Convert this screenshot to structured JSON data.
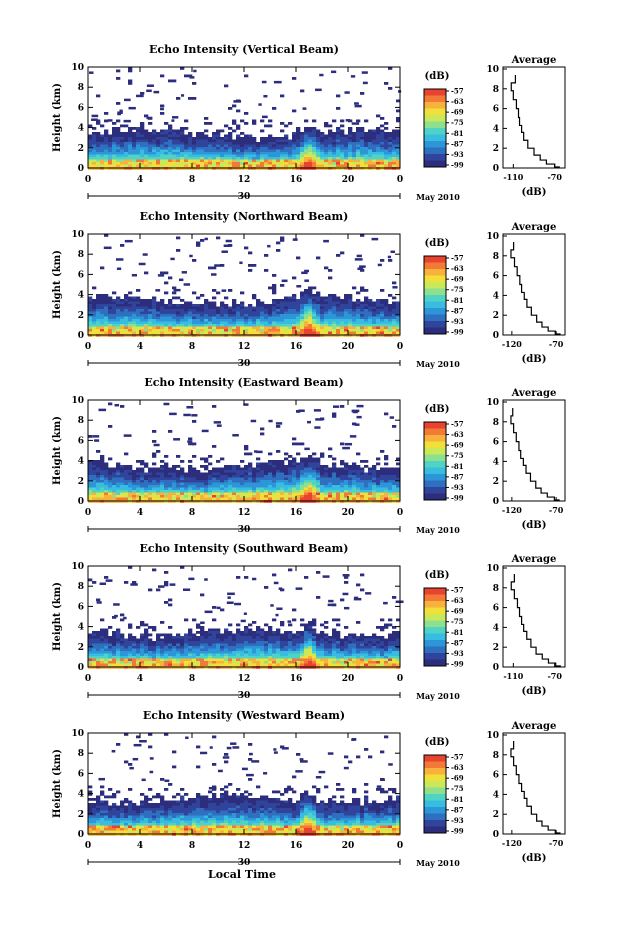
{
  "figure": {
    "xlabel": "Local Time",
    "date_label": "May 2010",
    "day_label": "30",
    "side_title": "Average",
    "side_xlabel": "(dB)",
    "colorbar_unit": "(dB)",
    "ylabel": "Height (km)"
  },
  "colors": {
    "colormap": [
      "#2c2e7d",
      "#31449c",
      "#2e6fbf",
      "#2d96d8",
      "#38bde0",
      "#4fd3c4",
      "#8ee08e",
      "#c9e85a",
      "#f1e03a",
      "#f8b23c",
      "#f27a36",
      "#e8432e"
    ]
  },
  "chart_data": [
    {
      "type": "heatmap",
      "title": "Echo Intensity (Vertical Beam)",
      "x_ticks": [
        "0",
        "4",
        "8",
        "12",
        "16",
        "20",
        "0"
      ],
      "y_ticks": [
        "0",
        "2",
        "4",
        "6",
        "8",
        "10"
      ],
      "xlim": [
        0,
        24
      ],
      "ylim": [
        0,
        10
      ],
      "colorbar_ticks": [
        "-57",
        "-63",
        "-69",
        "-75",
        "-81",
        "-87",
        "-93",
        "-99"
      ],
      "average_profile": {
        "xlim": [
          -120,
          -60
        ],
        "x_ticks": [
          "-110",
          "-70"
        ],
        "y_ticks": [
          "0",
          "2",
          "4",
          "6",
          "8",
          "10"
        ],
        "x": [
          -108,
          -112,
          -110,
          -107,
          -105,
          -104,
          -102,
          -100,
          -96,
          -90,
          -84,
          -78,
          -70,
          -65
        ],
        "y": [
          9.4,
          8.6,
          7.8,
          6.9,
          6.0,
          5.1,
          4.3,
          3.6,
          2.8,
          2.0,
          1.3,
          0.8,
          0.4,
          0.1
        ]
      }
    },
    {
      "type": "heatmap",
      "title": "Echo Intensity (Northward Beam)",
      "x_ticks": [
        "0",
        "4",
        "8",
        "12",
        "16",
        "20",
        "0"
      ],
      "y_ticks": [
        "0",
        "2",
        "4",
        "6",
        "8",
        "10"
      ],
      "xlim": [
        0,
        24
      ],
      "ylim": [
        0,
        10
      ],
      "colorbar_ticks": [
        "-57",
        "-63",
        "-69",
        "-75",
        "-81",
        "-87",
        "-93",
        "-99"
      ],
      "average_profile": {
        "xlim": [
          -130,
          -60
        ],
        "x_ticks": [
          "-120",
          "-70"
        ],
        "y_ticks": [
          "0",
          "2",
          "4",
          "6",
          "8",
          "10"
        ],
        "x": [
          -118,
          -121,
          -117,
          -114,
          -111,
          -109,
          -106,
          -103,
          -98,
          -92,
          -86,
          -79,
          -71,
          -65
        ],
        "y": [
          9.4,
          8.6,
          7.8,
          6.9,
          6.0,
          5.1,
          4.3,
          3.6,
          2.8,
          2.0,
          1.3,
          0.8,
          0.4,
          0.1
        ]
      }
    },
    {
      "type": "heatmap",
      "title": "Echo Intensity (Eastward Beam)",
      "x_ticks": [
        "0",
        "4",
        "8",
        "12",
        "16",
        "20",
        "0"
      ],
      "y_ticks": [
        "0",
        "2",
        "4",
        "6",
        "8",
        "10"
      ],
      "xlim": [
        0,
        24
      ],
      "ylim": [
        0,
        10
      ],
      "colorbar_ticks": [
        "-57",
        "-63",
        "-69",
        "-75",
        "-81",
        "-87",
        "-93",
        "-99"
      ],
      "average_profile": {
        "xlim": [
          -130,
          -60
        ],
        "x_ticks": [
          "-120",
          "-70"
        ],
        "y_ticks": [
          "0",
          "2",
          "4",
          "6",
          "8",
          "10"
        ],
        "x": [
          -119,
          -121,
          -118,
          -115,
          -112,
          -110,
          -107,
          -104,
          -99,
          -93,
          -87,
          -80,
          -72,
          -66
        ],
        "y": [
          9.4,
          8.6,
          7.8,
          6.9,
          6.0,
          5.1,
          4.3,
          3.6,
          2.8,
          2.0,
          1.3,
          0.8,
          0.4,
          0.1
        ]
      }
    },
    {
      "type": "heatmap",
      "title": "Echo Intensity (Southward Beam)",
      "x_ticks": [
        "0",
        "4",
        "8",
        "12",
        "16",
        "20",
        "0"
      ],
      "y_ticks": [
        "0",
        "2",
        "4",
        "6",
        "8",
        "10"
      ],
      "xlim": [
        0,
        24
      ],
      "ylim": [
        0,
        10
      ],
      "colorbar_ticks": [
        "-57",
        "-63",
        "-69",
        "-75",
        "-81",
        "-87",
        "-93",
        "-99"
      ],
      "average_profile": {
        "xlim": [
          -120,
          -60
        ],
        "x_ticks": [
          "-110",
          "-70"
        ],
        "y_ticks": [
          "0",
          "2",
          "4",
          "6",
          "8",
          "10"
        ],
        "x": [
          -109,
          -112,
          -109,
          -106,
          -104,
          -102,
          -100,
          -97,
          -93,
          -88,
          -82,
          -76,
          -69,
          -64
        ],
        "y": [
          9.4,
          8.6,
          7.8,
          6.9,
          6.0,
          5.1,
          4.3,
          3.6,
          2.8,
          2.0,
          1.3,
          0.8,
          0.4,
          0.1
        ]
      }
    },
    {
      "type": "heatmap",
      "title": "Echo Intensity (Westward Beam)",
      "x_ticks": [
        "0",
        "4",
        "8",
        "12",
        "16",
        "20",
        "0"
      ],
      "y_ticks": [
        "0",
        "2",
        "4",
        "6",
        "8",
        "10"
      ],
      "xlim": [
        0,
        24
      ],
      "ylim": [
        0,
        10
      ],
      "colorbar_ticks": [
        "-57",
        "-63",
        "-69",
        "-75",
        "-81",
        "-87",
        "-93",
        "-99"
      ],
      "average_profile": {
        "xlim": [
          -130,
          -60
        ],
        "x_ticks": [
          "-120",
          "-70"
        ],
        "y_ticks": [
          "0",
          "2",
          "4",
          "6",
          "8",
          "10"
        ],
        "x": [
          -118,
          -121,
          -118,
          -115,
          -112,
          -109,
          -106,
          -103,
          -98,
          -92,
          -86,
          -79,
          -71,
          -65
        ],
        "y": [
          9.4,
          8.6,
          7.8,
          6.9,
          6.0,
          5.1,
          4.3,
          3.6,
          2.8,
          2.0,
          1.3,
          0.8,
          0.4,
          0.1
        ]
      }
    }
  ]
}
